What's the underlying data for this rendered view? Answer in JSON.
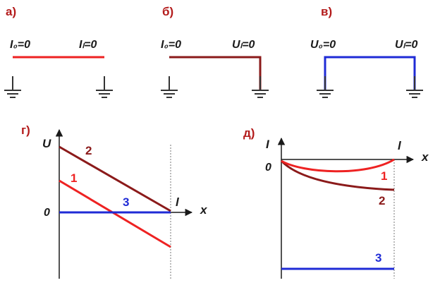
{
  "colors": {
    "red": "#ee2222",
    "darkred": "#8b1a1a",
    "blue": "#1f2bd6",
    "black": "#1a1a1a",
    "gray": "#777777"
  },
  "panels": {
    "a": {
      "label": "а)",
      "left": "I₀=0",
      "right": "Iₗ=0"
    },
    "b": {
      "label": "б)",
      "left": "I₀=0",
      "right": "Uₗ=0"
    },
    "v": {
      "label": "в)",
      "left": "U₀=0",
      "right": "Uₗ=0"
    }
  },
  "graph_g": {
    "label": "г)",
    "y_axis": "U",
    "x_axis": "x",
    "zero": "0",
    "end_mark": "l",
    "curves": [
      "1",
      "2",
      "3"
    ]
  },
  "graph_d": {
    "label": "д)",
    "y_axis": "I",
    "x_axis": "x",
    "zero": "0",
    "end_mark": "l",
    "curves": [
      "1",
      "2",
      "3"
    ]
  }
}
